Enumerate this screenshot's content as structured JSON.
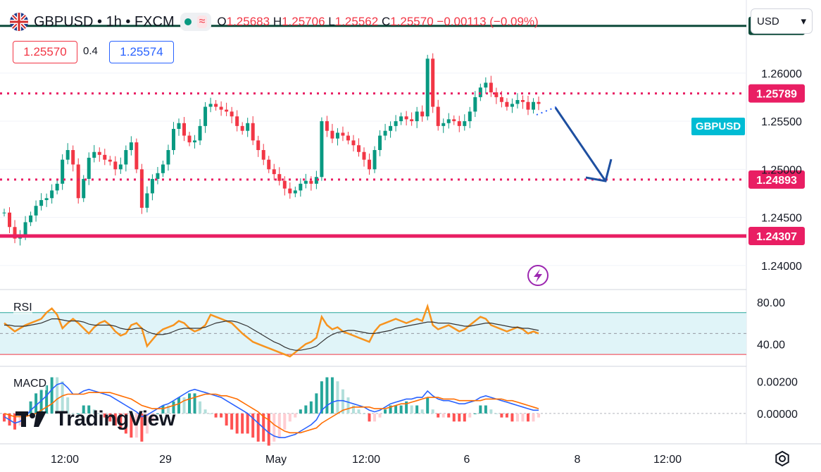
{
  "header": {
    "symbol": "GBPUSD • 1h • FXCM",
    "open_label": "O",
    "open": "1.25683",
    "high_label": "H",
    "high": "1.25706",
    "low_label": "L",
    "low": "1.25562",
    "close_label": "C",
    "close": "1.25570",
    "change": "−0.00113 (−0.09%)",
    "wave_glyph": "≈"
  },
  "order_boxes": {
    "sell_price": "1.25570",
    "spread": "0.4",
    "buy_price": "1.25574"
  },
  "currency_selector": {
    "value": "USD",
    "arrow": "▾"
  },
  "symbol_tag": "GBPUSD",
  "branding": "TradingView",
  "colors": {
    "up": "#089981",
    "down": "#f23645",
    "level": "#e91e63",
    "dark_level": "#0d4a3a",
    "arrow": "#1e4fa0",
    "rsi": "#f7931e",
    "macd": "#2962ff",
    "signal": "#ff6d00",
    "tag": "#00bcd4"
  },
  "chart_data": {
    "type": "line",
    "title": "",
    "price_axis": {
      "ticks": [
        "1.26000",
        "1.25500",
        "1.25000",
        "1.24500",
        "1.24000"
      ],
      "tick_values": [
        1.26,
        1.255,
        1.25,
        1.245,
        1.24
      ],
      "range": [
        1.2375,
        1.2676
      ]
    },
    "x_axis": {
      "ticks": [
        "12:00",
        "29",
        "May",
        "12:00",
        "6",
        "8",
        "12:00"
      ]
    },
    "price_series": {
      "name": "GBPUSD",
      "values": [
        1.2455,
        1.244,
        1.2428,
        1.2432,
        1.2445,
        1.2452,
        1.2462,
        1.2468,
        1.247,
        1.2478,
        1.2485,
        1.251,
        1.252,
        1.2505,
        1.247,
        1.249,
        1.2512,
        1.2518,
        1.2515,
        1.251,
        1.2508,
        1.25,
        1.2505,
        1.252,
        1.2528,
        1.25,
        1.246,
        1.2475,
        1.249,
        1.2496,
        1.2505,
        1.252,
        1.2542,
        1.2548,
        1.2535,
        1.2528,
        1.253,
        1.2545,
        1.2565,
        1.2568,
        1.2565,
        1.2562,
        1.256,
        1.2555,
        1.2545,
        1.254,
        1.2548,
        1.253,
        1.252,
        1.251,
        1.25,
        1.2495,
        1.2488,
        1.248,
        1.2475,
        1.2478,
        1.2485,
        1.2488,
        1.2485,
        1.2492,
        1.255,
        1.254,
        1.2532,
        1.2538,
        1.2535,
        1.253,
        1.2525,
        1.2518,
        1.251,
        1.25,
        1.252,
        1.2535,
        1.254,
        1.2545,
        1.255,
        1.2555,
        1.2552,
        1.255,
        1.256,
        1.2555,
        1.2615,
        1.2565,
        1.2545,
        1.2548,
        1.2552,
        1.255,
        1.2545,
        1.255,
        1.256,
        1.2575,
        1.2585,
        1.259,
        1.258,
        1.2575,
        1.257,
        1.2565,
        1.2568,
        1.2572,
        1.257,
        1.2562,
        1.257,
        1.2568
      ]
    },
    "levels": [
      {
        "label": "1.26491",
        "value": 1.26491,
        "style": "solid-dark"
      },
      {
        "label": "1.25789",
        "value": 1.25789,
        "style": "dotted"
      },
      {
        "label": "1.24893",
        "value": 1.24893,
        "style": "dotted"
      },
      {
        "label": "1.24307",
        "value": 1.24307,
        "style": "solid"
      }
    ],
    "rsi": {
      "label": "RSI",
      "ticks": [
        "80.00",
        "40.00"
      ],
      "tick_values": [
        80,
        40
      ],
      "band": [
        70,
        30
      ],
      "range": [
        20,
        90
      ],
      "values": [
        60,
        56,
        52,
        55,
        58,
        60,
        62,
        64,
        70,
        74,
        68,
        55,
        60,
        64,
        60,
        55,
        50,
        56,
        60,
        62,
        58,
        52,
        48,
        50,
        58,
        60,
        55,
        38,
        44,
        50,
        54,
        56,
        58,
        62,
        60,
        55,
        52,
        54,
        58,
        68,
        66,
        64,
        62,
        60,
        55,
        50,
        46,
        42,
        40,
        38,
        36,
        34,
        32,
        30,
        28,
        32,
        36,
        40,
        42,
        46,
        66,
        58,
        54,
        56,
        52,
        50,
        48,
        46,
        44,
        42,
        52,
        58,
        60,
        62,
        64,
        62,
        60,
        62,
        64,
        62,
        76,
        58,
        54,
        56,
        58,
        55,
        52,
        54,
        58,
        62,
        66,
        64,
        58,
        56,
        54,
        52,
        54,
        56,
        54,
        50,
        52,
        50
      ],
      "signal": [
        58,
        58,
        57,
        57,
        57,
        58,
        59,
        60,
        62,
        64,
        64,
        63,
        62,
        62,
        62,
        61,
        59,
        58,
        58,
        58,
        58,
        57,
        55,
        54,
        54,
        55,
        55,
        52,
        50,
        49,
        49,
        50,
        52,
        54,
        55,
        55,
        55,
        55,
        56,
        58,
        60,
        61,
        62,
        62,
        61,
        59,
        57,
        54,
        51,
        48,
        45,
        42,
        40,
        37,
        35,
        34,
        34,
        35,
        36,
        38,
        42,
        46,
        49,
        51,
        52,
        53,
        53,
        52,
        51,
        50,
        50,
        51,
        52,
        53,
        55,
        56,
        57,
        58,
        59,
        60,
        61,
        61,
        60,
        60,
        60,
        59,
        58,
        57,
        57,
        58,
        59,
        60,
        60,
        59,
        58,
        57,
        56,
        56,
        55,
        55,
        54,
        53
      ]
    },
    "macd": {
      "label": "MACD",
      "ticks": [
        "0.00200",
        "0.00000"
      ],
      "tick_values": [
        0.002,
        0.0
      ],
      "range": [
        -0.0018,
        0.0028
      ],
      "macd": [
        -0.0002,
        -0.0004,
        -0.0006,
        -0.0005,
        -0.0002,
        0.0002,
        0.0005,
        0.0008,
        0.0011,
        0.0015,
        0.0018,
        0.0019,
        0.0016,
        0.0012,
        0.0012,
        0.0014,
        0.0015,
        0.0014,
        0.0013,
        0.0012,
        0.0011,
        0.0009,
        0.0007,
        0.0005,
        0.0003,
        0.0001,
        -0.0002,
        -0.0001,
        0.0001,
        0.0003,
        0.0005,
        0.0006,
        0.0008,
        0.001,
        0.0012,
        0.0014,
        0.0015,
        0.0014,
        0.0013,
        0.0012,
        0.0011,
        0.001,
        0.0008,
        0.0006,
        0.0004,
        0.0002,
        0.0,
        -0.0003,
        -0.0006,
        -0.0009,
        -0.0012,
        -0.0014,
        -0.0015,
        -0.0015,
        -0.0014,
        -0.0013,
        -0.0011,
        -0.0009,
        -0.0007,
        -0.0004,
        0.0002,
        0.0005,
        0.0007,
        0.0008,
        0.0008,
        0.0007,
        0.0006,
        0.0005,
        0.0004,
        0.0002,
        0.0001,
        0.0002,
        0.0004,
        0.0006,
        0.0007,
        0.0008,
        0.0009,
        0.0009,
        0.001,
        0.001,
        0.0014,
        0.0011,
        0.0009,
        0.0008,
        0.0008,
        0.0007,
        0.0006,
        0.0006,
        0.0007,
        0.0008,
        0.001,
        0.0011,
        0.001,
        0.0009,
        0.0008,
        0.0007,
        0.0006,
        0.0005,
        0.0004,
        0.0003,
        0.0002,
        0.0002
      ],
      "signal": [
        0.0,
        -0.0001,
        -0.0002,
        -0.0002,
        -0.0002,
        -0.0001,
        0.0,
        0.0002,
        0.0004,
        0.0006,
        0.0009,
        0.0011,
        0.0012,
        0.0012,
        0.0012,
        0.0012,
        0.0013,
        0.0013,
        0.0013,
        0.0013,
        0.0013,
        0.0012,
        0.0011,
        0.001,
        0.0009,
        0.0007,
        0.0005,
        0.0004,
        0.0003,
        0.0003,
        0.0003,
        0.0004,
        0.0005,
        0.0006,
        0.0008,
        0.0009,
        0.001,
        0.0011,
        0.0012,
        0.0012,
        0.0012,
        0.0011,
        0.0011,
        0.001,
        0.0009,
        0.0007,
        0.0005,
        0.0003,
        0.0001,
        -0.0002,
        -0.0004,
        -0.0007,
        -0.0009,
        -0.0011,
        -0.0012,
        -0.0012,
        -0.0012,
        -0.0011,
        -0.001,
        -0.0009,
        -0.0006,
        -0.0004,
        -0.0002,
        0.0,
        0.0002,
        0.0003,
        0.0004,
        0.0004,
        0.0004,
        0.0004,
        0.0003,
        0.0003,
        0.0003,
        0.0004,
        0.0005,
        0.0006,
        0.0006,
        0.0007,
        0.0008,
        0.0009,
        0.001,
        0.001,
        0.001,
        0.0009,
        0.0009,
        0.0009,
        0.0008,
        0.0008,
        0.0008,
        0.0008,
        0.0008,
        0.0009,
        0.0009,
        0.0009,
        0.0009,
        0.0008,
        0.0008,
        0.0007,
        0.0006,
        0.0005,
        0.0004,
        0.0003
      ]
    }
  }
}
